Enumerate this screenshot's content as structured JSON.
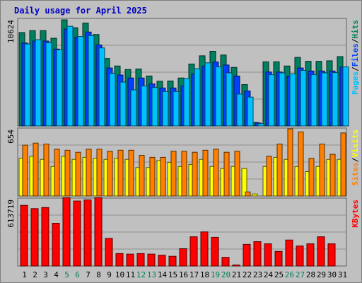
{
  "chart_data": {
    "type": "bar",
    "title": "Daily usage for April 2025",
    "categories": [
      "1",
      "2",
      "3",
      "4",
      "5",
      "6",
      "7",
      "8",
      "9",
      "10",
      "11",
      "12",
      "13",
      "14",
      "15",
      "16",
      "17",
      "18",
      "19",
      "20",
      "21",
      "22",
      "23",
      "24",
      "25",
      "26",
      "27",
      "28",
      "29",
      "30",
      "31"
    ],
    "weekend_days": [
      "5",
      "6",
      "12",
      "13",
      "19",
      "20",
      "26",
      "27"
    ],
    "panels": [
      {
        "id": "hits_files_pages",
        "max_label": "10624",
        "ymax": 10624,
        "legend": [
          {
            "text": "Pages",
            "color": "#00c0ff"
          },
          {
            "text": "/",
            "color": "#000000"
          },
          {
            "text": "Files",
            "color": "#0040ff"
          },
          {
            "text": "/",
            "color": "#000000"
          },
          {
            "text": "Hits",
            "color": "#00805c"
          }
        ],
        "series": [
          {
            "name": "Hits",
            "color": "#008060",
            "values": [
              9350,
              9540,
              9540,
              8780,
              10620,
              9830,
              10300,
              9150,
              6750,
              6000,
              5650,
              5700,
              5000,
              4480,
              4500,
              4800,
              6200,
              7020,
              7470,
              7100,
              5860,
              4140,
              350,
              6420,
              6420,
              6000,
              6860,
              6470,
              6470,
              6520,
              6940
            ]
          },
          {
            "name": "Files",
            "color": "#0040ff",
            "values": [
              8300,
              8500,
              8500,
              7700,
              9700,
              8900,
              9400,
              8100,
              5800,
              5100,
              4800,
              4800,
              4200,
              3800,
              3800,
              4000,
              5200,
              6000,
              6400,
              6100,
              5000,
              3500,
              300,
              5400,
              5400,
              5000,
              5800,
              5500,
              5500,
              5500,
              5900
            ]
          },
          {
            "name": "Pages",
            "color": "#00c0ff",
            "values": [
              8210,
              8640,
              8330,
              7620,
              9980,
              8950,
              9040,
              7810,
              5260,
              4390,
              3610,
              4000,
              3850,
              3450,
              3450,
              4750,
              5730,
              6320,
              5910,
              5320,
              3190,
              2890,
              230,
              5130,
              5310,
              5220,
              5560,
              5130,
              5320,
              5340,
              5910
            ]
          }
        ]
      },
      {
        "id": "visits_sites",
        "max_label": "654",
        "ymax": 654,
        "legend": [
          {
            "text": "Sites",
            "color": "#ff8000"
          },
          {
            "text": "/",
            "color": "#000000"
          },
          {
            "text": "Visits",
            "color": "#ffff00"
          }
        ],
        "series": [
          {
            "name": "Visits",
            "color": "#ffff00",
            "values": [
              370,
              390,
              360,
              290,
              390,
              360,
              380,
              370,
              360,
              370,
              360,
              280,
              280,
              350,
              330,
              290,
              310,
              360,
              290,
              270,
              290,
              270,
              20,
              290,
              380,
              360,
              290,
              240,
              290,
              360,
              360
            ]
          },
          {
            "name": "Sites",
            "color": "#ff8000",
            "values": [
              500,
              520,
              510,
              460,
              450,
              430,
              460,
              460,
              440,
              450,
              450,
              400,
              380,
              380,
              440,
              440,
              430,
              450,
              460,
              430,
              440,
              40,
              0,
              390,
              510,
              660,
              630,
              370,
              510,
              410,
              620
            ]
          }
        ]
      },
      {
        "id": "kbytes",
        "max_label": "613719",
        "ymax": 613719,
        "legend": [
          {
            "text": "KBytes",
            "color": "#ff0000"
          }
        ],
        "series": [
          {
            "name": "KBytes",
            "color": "#ff0000",
            "values": [
              560000,
              530000,
              540000,
              395000,
              630000,
              600000,
              610000,
              630000,
              255000,
              115000,
              110000,
              115000,
              110000,
              100000,
              90000,
              160000,
              270000,
              315000,
              265000,
              80000,
              10000,
              200000,
              225000,
              205000,
              135000,
              240000,
              185000,
              205000,
              270000,
              205000,
              0
            ]
          }
        ]
      }
    ]
  }
}
